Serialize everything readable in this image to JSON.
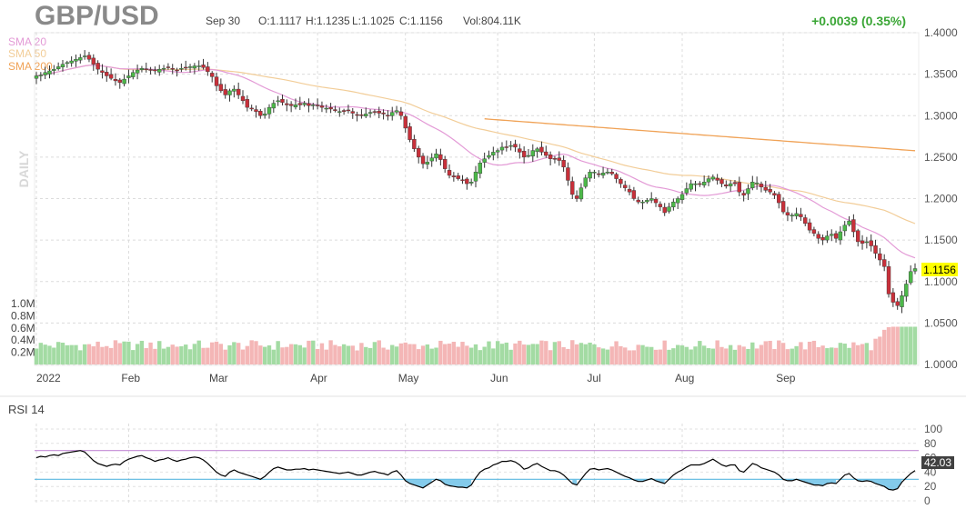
{
  "header": {
    "symbol": "GBP/USD",
    "date": "Sep 30",
    "open": "O:1.1117",
    "high": "H:1.1235",
    "low": "L:1.1025",
    "close": "C:1.1156",
    "volume": "Vol:804.11K",
    "change": "+0.0039 (0.35%)"
  },
  "legend": [
    {
      "label": "SMA 20",
      "color": "#e39ad6"
    },
    {
      "label": "SMA 50",
      "color": "#f2cd98"
    },
    {
      "label": "SMA 200",
      "color": "#f0a256"
    }
  ],
  "watermark": "DAILY",
  "price_panel": {
    "last_price_label": "1.1156",
    "y_ticks": [
      "1.4000",
      "1.3500",
      "1.3000",
      "1.2500",
      "1.2000",
      "1.1500",
      "1.1000",
      "1.0500",
      "1.0000"
    ],
    "volume_ticks": [
      "1.0M",
      "0.8M",
      "0.6M",
      "0.4M",
      "0.2M"
    ],
    "x_ticks": [
      "2022",
      "Feb",
      "Mar",
      "Apr",
      "May",
      "Jun",
      "Jul",
      "Aug",
      "Sep"
    ]
  },
  "rsi_panel": {
    "title": "RSI 14",
    "value_label": "42.03",
    "y_ticks": [
      "100",
      "80",
      "60",
      "40",
      "20",
      "0"
    ]
  },
  "colors": {
    "up": "#4cb849",
    "down": "#c8303a",
    "vol_up": "#a3dba3",
    "vol_down": "#f4b6b6",
    "change_text": "#3aa635",
    "last_price_bg": "#ffff00",
    "rsi_line": "#000000",
    "rsi_band_high": "#c28ad6",
    "rsi_band_low": "#5ab7e0",
    "rsi_fill": "#6ec2e8"
  },
  "chart_data": {
    "type": "candlestick",
    "title": "GBP/USD",
    "timeframe": "Daily",
    "ylim": [
      1.0,
      1.4
    ],
    "volume_ylim": [
      0,
      1000000
    ],
    "rsi_ylim": [
      0,
      100
    ],
    "rsi_bands": [
      70,
      30
    ],
    "last_close": 1.1156,
    "last_rsi": 42.03,
    "months": [
      {
        "label": "2022",
        "start_index": 0
      },
      {
        "label": "Feb",
        "start_index": 21
      },
      {
        "label": "Mar",
        "start_index": 41
      },
      {
        "label": "Apr",
        "start_index": 64
      },
      {
        "label": "May",
        "start_index": 84
      },
      {
        "label": "Jun",
        "start_index": 105
      },
      {
        "label": "Jul",
        "start_index": 127
      },
      {
        "label": "Aug",
        "start_index": 147
      },
      {
        "label": "Sep",
        "start_index": 170
      }
    ],
    "close": [
      1.348,
      1.349,
      1.352,
      1.354,
      1.356,
      1.359,
      1.362,
      1.364,
      1.366,
      1.368,
      1.37,
      1.372,
      1.368,
      1.362,
      1.356,
      1.352,
      1.348,
      1.345,
      1.342,
      1.34,
      1.344,
      1.348,
      1.352,
      1.355,
      1.357,
      1.356,
      1.355,
      1.354,
      1.356,
      1.357,
      1.358,
      1.356,
      1.355,
      1.357,
      1.358,
      1.359,
      1.36,
      1.36,
      1.358,
      1.353,
      1.347,
      1.336,
      1.33,
      1.325,
      1.33,
      1.332,
      1.325,
      1.318,
      1.31,
      1.308,
      1.305,
      1.3,
      1.302,
      1.31,
      1.315,
      1.318,
      1.316,
      1.313,
      1.312,
      1.313,
      1.313,
      1.315,
      1.312,
      1.313,
      1.312,
      1.31,
      1.309,
      1.308,
      1.306,
      1.305,
      1.305,
      1.306,
      1.303,
      1.301,
      1.3,
      1.302,
      1.304,
      1.305,
      1.303,
      1.302,
      1.3,
      1.304,
      1.306,
      1.3,
      1.285,
      1.271,
      1.26,
      1.25,
      1.242,
      1.244,
      1.249,
      1.254,
      1.247,
      1.236,
      1.228,
      1.226,
      1.224,
      1.222,
      1.218,
      1.22,
      1.232,
      1.243,
      1.248,
      1.252,
      1.256,
      1.258,
      1.262,
      1.262,
      1.264,
      1.262,
      1.256,
      1.25,
      1.252,
      1.258,
      1.26,
      1.256,
      1.252,
      1.248,
      1.248,
      1.246,
      1.238,
      1.222,
      1.205,
      1.2,
      1.213,
      1.225,
      1.232,
      1.232,
      1.23,
      1.231,
      1.232,
      1.23,
      1.224,
      1.218,
      1.213,
      1.208,
      1.2,
      1.196,
      1.196,
      1.198,
      1.2,
      1.195,
      1.19,
      1.183,
      1.19,
      1.196,
      1.2,
      1.205,
      1.212,
      1.218,
      1.218,
      1.218,
      1.22,
      1.224,
      1.226,
      1.222,
      1.218,
      1.215,
      1.218,
      1.218,
      1.208,
      1.204,
      1.212,
      1.22,
      1.219,
      1.214,
      1.21,
      1.208,
      1.204,
      1.195,
      1.184,
      1.18,
      1.18,
      1.182,
      1.178,
      1.17,
      1.162,
      1.158,
      1.152,
      1.15,
      1.155,
      1.157,
      1.152,
      1.16,
      1.168,
      1.173,
      1.16,
      1.148,
      1.146,
      1.148,
      1.143,
      1.134,
      1.126,
      1.118,
      1.085,
      1.075,
      1.071,
      1.083,
      1.097,
      1.112,
      1.1156
    ],
    "rsi": [
      60,
      62,
      61,
      63,
      64,
      63,
      66,
      67,
      68,
      69,
      70,
      68,
      62,
      56,
      52,
      50,
      48,
      50,
      51,
      50,
      55,
      58,
      60,
      62,
      63,
      60,
      58,
      55,
      57,
      58,
      60,
      57,
      55,
      57,
      58,
      60,
      61,
      60,
      57,
      52,
      46,
      40,
      36,
      34,
      40,
      43,
      40,
      38,
      36,
      34,
      32,
      30,
      34,
      40,
      45,
      47,
      45,
      43,
      43,
      44,
      44,
      45,
      43,
      44,
      43,
      42,
      41,
      40,
      39,
      38,
      39,
      40,
      38,
      36,
      36,
      38,
      40,
      41,
      39,
      38,
      36,
      40,
      42,
      36,
      28,
      24,
      22,
      20,
      18,
      22,
      26,
      30,
      28,
      23,
      21,
      20,
      19,
      19,
      18,
      22,
      32,
      40,
      44,
      46,
      50,
      52,
      55,
      55,
      56,
      54,
      50,
      44,
      46,
      50,
      52,
      48,
      45,
      42,
      42,
      40,
      36,
      30,
      24,
      22,
      30,
      38,
      44,
      45,
      43,
      44,
      45,
      43,
      40,
      37,
      34,
      32,
      29,
      27,
      27,
      29,
      31,
      28,
      26,
      24,
      30,
      36,
      40,
      43,
      47,
      50,
      50,
      50,
      52,
      55,
      58,
      54,
      50,
      48,
      50,
      50,
      42,
      40,
      46,
      52,
      50,
      46,
      44,
      42,
      40,
      36,
      30,
      28,
      28,
      30,
      28,
      26,
      24,
      22,
      22,
      21,
      24,
      25,
      24,
      30,
      36,
      38,
      32,
      28,
      27,
      28,
      27,
      24,
      22,
      20,
      16,
      15,
      17,
      26,
      32,
      38,
      42.03
    ]
  }
}
